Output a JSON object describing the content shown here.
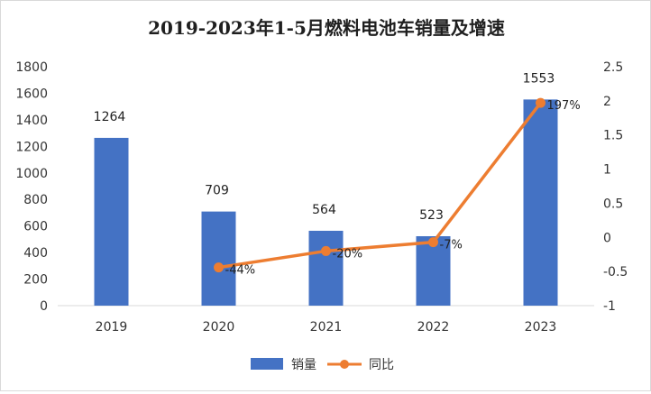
{
  "chart_data": {
    "type": "bar",
    "title": "2019-2023年1-5月燃料电池车销量及增速",
    "categories": [
      "2019",
      "2020",
      "2021",
      "2022",
      "2023"
    ],
    "series": [
      {
        "name": "销量",
        "kind": "bar",
        "axis": "left",
        "values": [
          1264,
          709,
          564,
          523,
          1553
        ]
      },
      {
        "name": "同比",
        "kind": "line",
        "axis": "right",
        "values": [
          null,
          -0.44,
          -0.2,
          -0.07,
          1.97
        ],
        "labels": [
          "",
          "-44%",
          "-20%",
          "-7%",
          "197%"
        ]
      }
    ],
    "bar_labels": [
      "1264",
      "709",
      "564",
      "523",
      "1553"
    ],
    "y_left": {
      "min": 0,
      "max": 1800,
      "step": 200,
      "ticks": [
        "0",
        "200",
        "400",
        "600",
        "800",
        "1000",
        "1200",
        "1400",
        "1600",
        "1800"
      ]
    },
    "y_right": {
      "min": -1,
      "max": 2.5,
      "step": 0.5,
      "ticks": [
        "-1",
        "-0.5",
        "0",
        "0.5",
        "1",
        "1.5",
        "2",
        "2.5"
      ]
    },
    "legend": {
      "position": "bottom",
      "items": [
        "销量",
        "同比"
      ]
    },
    "colors": {
      "bar": "#4472C4",
      "line": "#ED7D31"
    }
  }
}
